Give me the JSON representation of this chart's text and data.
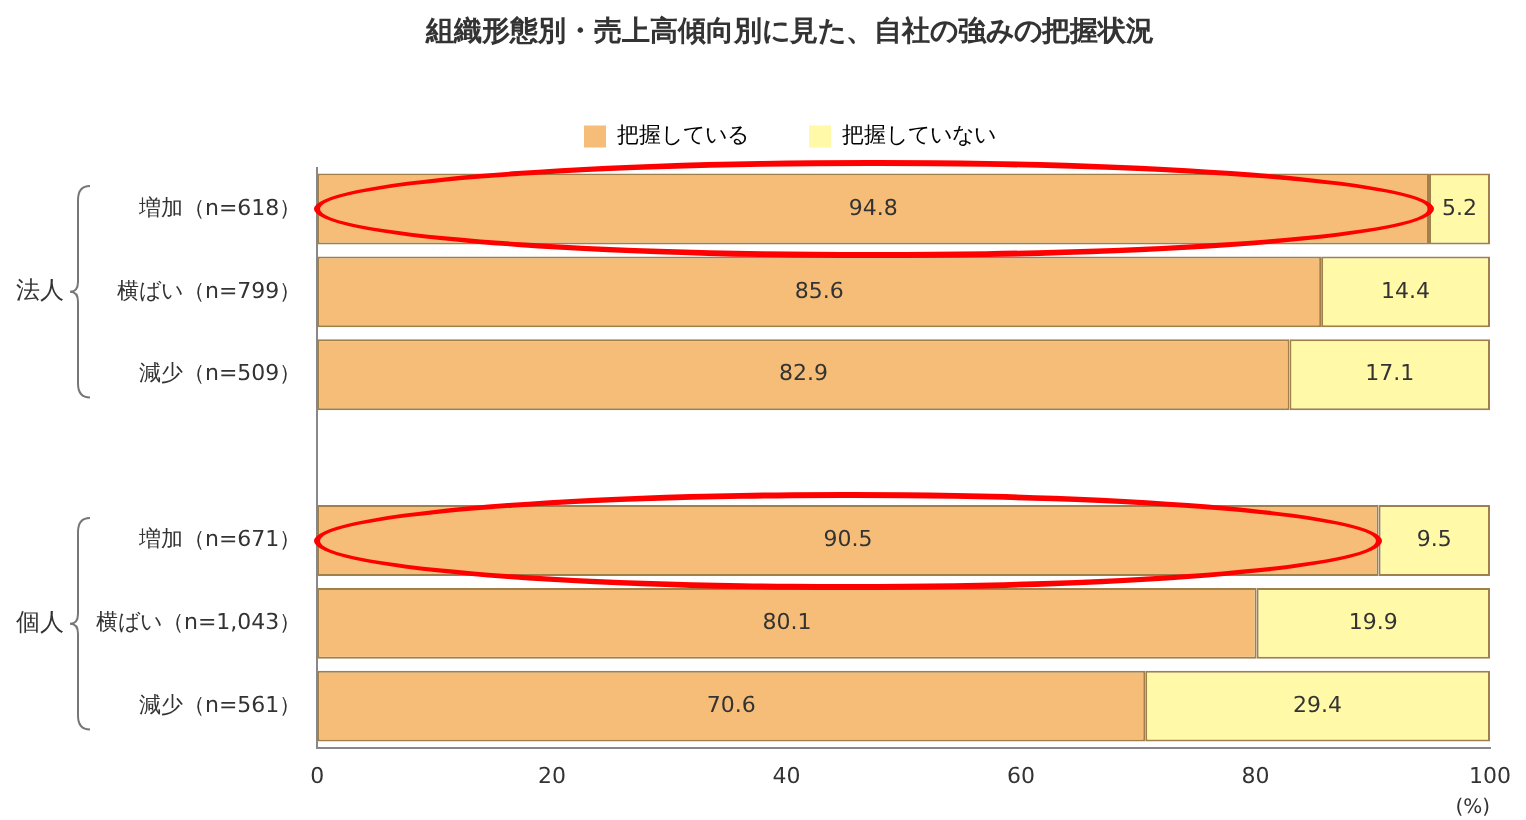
{
  "chart_data": {
    "type": "bar",
    "orientation": "horizontal",
    "stacked": true,
    "title": "組織形態別・売上高傾向別に見た、自社の強みの把握状況",
    "xlabel": "(%)",
    "categories": [
      "増加（n=618）",
      "横ばい（n=799）",
      "減少（n=509）",
      null,
      "増加（n=671）",
      "横ばい（n=1,043）",
      "減少（n=561）"
    ],
    "series": [
      {
        "name": "把握している",
        "color": "#f5bd77",
        "values": [
          94.8,
          85.6,
          82.9,
          null,
          90.5,
          80.1,
          70.6
        ]
      },
      {
        "name": "把握していない",
        "color": "#fff9a8",
        "values": [
          5.2,
          14.4,
          17.1,
          null,
          9.5,
          19.9,
          29.4
        ]
      }
    ],
    "xlim": [
      0,
      100
    ],
    "xticks": [
      0,
      20,
      40,
      60,
      80,
      100
    ],
    "data_labels": true,
    "legend": "top",
    "grid": false,
    "annotations": [
      "法人",
      "個人"
    ]
  }
}
